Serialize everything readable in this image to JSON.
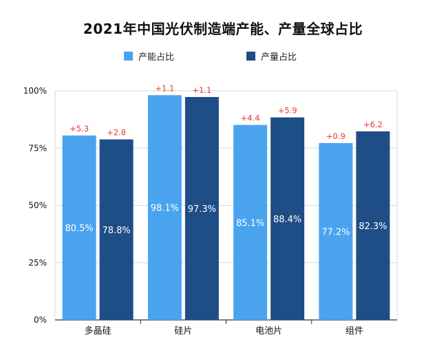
{
  "colors": {
    "capacity": "#4aa3ef",
    "output": "#1f4e86",
    "delta": "#e8372c",
    "grid": "#d9d9d9",
    "axis": "#333333"
  },
  "chart_data": {
    "type": "bar",
    "title": "2021年中国光伏制造端产能、产量全球占比",
    "xlabel": "",
    "ylabel": "",
    "ylim": [
      0,
      100
    ],
    "yticks": [
      "0%",
      "25%",
      "50%",
      "75%",
      "100%"
    ],
    "ytick_values": [
      0,
      25,
      50,
      75,
      100
    ],
    "grid": true,
    "legend_position": "top-left",
    "categories": [
      "多晶硅",
      "硅片",
      "电池片",
      "组件"
    ],
    "series": [
      {
        "name": "产能占比",
        "values": [
          80.5,
          98.1,
          85.1,
          77.2
        ],
        "value_labels": [
          "80.5%",
          "98.1%",
          "85.1%",
          "77.2%"
        ],
        "delta_labels": [
          "+5.3",
          "+1.1",
          "+4.4",
          "+0.9"
        ]
      },
      {
        "name": "产量占比",
        "values": [
          78.8,
          97.3,
          88.4,
          82.3
        ],
        "value_labels": [
          "78.8%",
          "97.3%",
          "88.4%",
          "82.3%"
        ],
        "delta_labels": [
          "+2.8",
          "+1.1",
          "+5.9",
          "+6.2"
        ]
      }
    ]
  }
}
